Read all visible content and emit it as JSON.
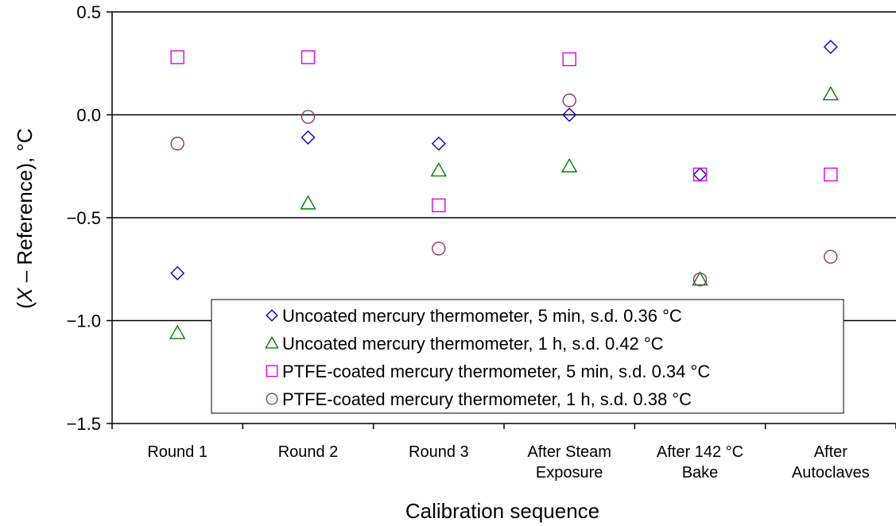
{
  "chart_data": {
    "type": "scatter",
    "title": "",
    "xlabel": "Calibration sequence",
    "ylabel_parts": [
      "(",
      "X",
      " – Reference), °C"
    ],
    "ylim": [
      -1.5,
      0.5
    ],
    "yticks": [
      -1.5,
      -1.0,
      -0.5,
      0.0,
      0.5
    ],
    "ytick_labels": [
      "−1.5",
      "−1.0",
      "−0.5",
      "0.0",
      "0.5"
    ],
    "grid_y": [
      -1.0,
      -0.5,
      0.0,
      0.5
    ],
    "legend_position": "bottom-right",
    "categories": [
      [
        "Round 1"
      ],
      [
        "Round 2"
      ],
      [
        "Round 3"
      ],
      [
        "After Steam",
        "Exposure"
      ],
      [
        "After 142 °C",
        "Bake"
      ],
      [
        "After",
        "Autoclaves"
      ]
    ],
    "series": [
      {
        "name": "Uncoated mercury thermometer, 5 min, s.d. 0.36 °C",
        "marker": "diamond",
        "color": "#0000cc",
        "values": [
          -0.77,
          -0.11,
          -0.14,
          0.0,
          -0.29,
          0.33
        ]
      },
      {
        "name": "Uncoated mercury thermometer, 1 h, s.d. 0.42 °C",
        "marker": "triangle",
        "color": "#008000",
        "values": [
          -1.06,
          -0.43,
          -0.27,
          -0.25,
          -0.8,
          0.1
        ]
      },
      {
        "name": "PTFE-coated mercury thermometer, 5 min, s.d. 0.34 °C",
        "marker": "square",
        "color": "#e000e0",
        "values": [
          0.28,
          0.28,
          -0.44,
          0.27,
          -0.29,
          -0.29
        ]
      },
      {
        "name": "PTFE-coated mercury thermometer, 1 h, s.d. 0.38 °C",
        "marker": "circle",
        "color": "#993366",
        "values": [
          -0.14,
          -0.01,
          -0.65,
          0.07,
          -0.8,
          -0.69
        ]
      }
    ]
  }
}
